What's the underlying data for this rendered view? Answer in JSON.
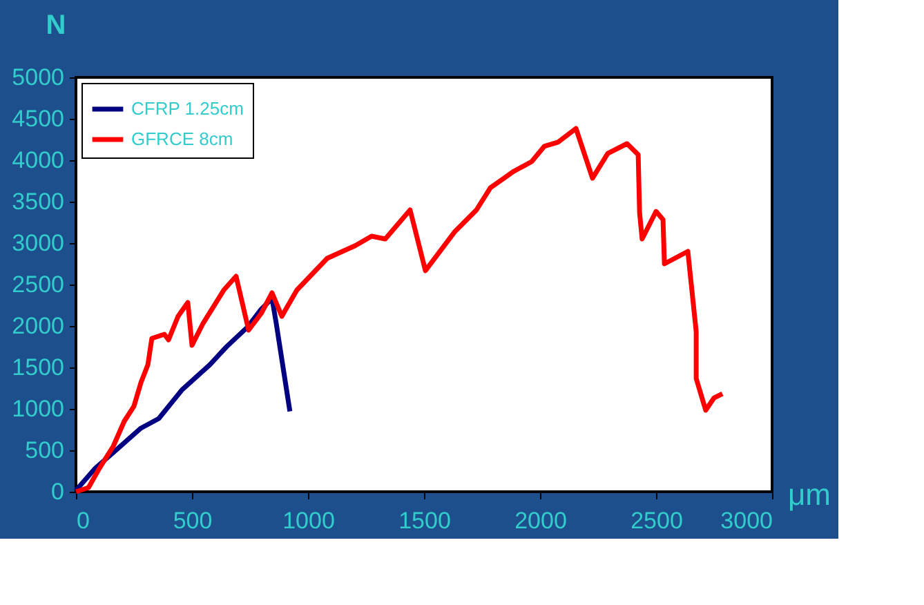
{
  "chart_data": {
    "type": "line",
    "xlabel": "μm",
    "ylabel": "N",
    "xlim": [
      0,
      3000
    ],
    "xticks": [
      0,
      500,
      1000,
      1500,
      2000,
      2500,
      3000
    ],
    "ylim": [
      0,
      5000
    ],
    "yticks": [
      0,
      500,
      1000,
      1500,
      2000,
      2500,
      3000,
      3500,
      4000,
      4500,
      5000
    ],
    "grid": false,
    "legend": "top left",
    "marker": "none",
    "line_style": "solid",
    "series": [
      {
        "name": "CFRP 1.25cm",
        "color": "#000080",
        "x": [
          0,
          83,
          179,
          280,
          357,
          458,
          577,
          649,
          738,
          798,
          845,
          863,
          922
        ],
        "values": [
          17,
          283,
          517,
          767,
          883,
          1233,
          1533,
          1750,
          1983,
          2200,
          2333,
          2033,
          970
        ]
      },
      {
        "name": "GFRCE  8cm",
        "color": "#ff0000",
        "x": [
          0,
          54,
          101,
          161,
          208,
          250,
          280,
          310,
          327,
          381,
          399,
          440,
          482,
          500,
          548,
          637,
          690,
          744,
          798,
          845,
          887,
          952,
          1083,
          1202,
          1274,
          1333,
          1440,
          1506,
          1631,
          1726,
          1786,
          1887,
          1964,
          2018,
          2077,
          2155,
          2226,
          2292,
          2375,
          2423,
          2429,
          2440,
          2500,
          2530,
          2536,
          2637,
          2673,
          2673,
          2714,
          2750,
          2786
        ],
        "values": [
          0,
          50,
          283,
          550,
          850,
          1033,
          1317,
          1533,
          1850,
          1900,
          1833,
          2117,
          2283,
          1767,
          2033,
          2433,
          2600,
          1950,
          2150,
          2400,
          2117,
          2433,
          2817,
          2967,
          3083,
          3050,
          3400,
          2667,
          3133,
          3400,
          3667,
          3867,
          3983,
          4167,
          4217,
          4383,
          3783,
          4083,
          4200,
          4067,
          3367,
          3050,
          3383,
          3283,
          2750,
          2900,
          1933,
          1367,
          983,
          1133,
          1183
        ]
      }
    ]
  }
}
